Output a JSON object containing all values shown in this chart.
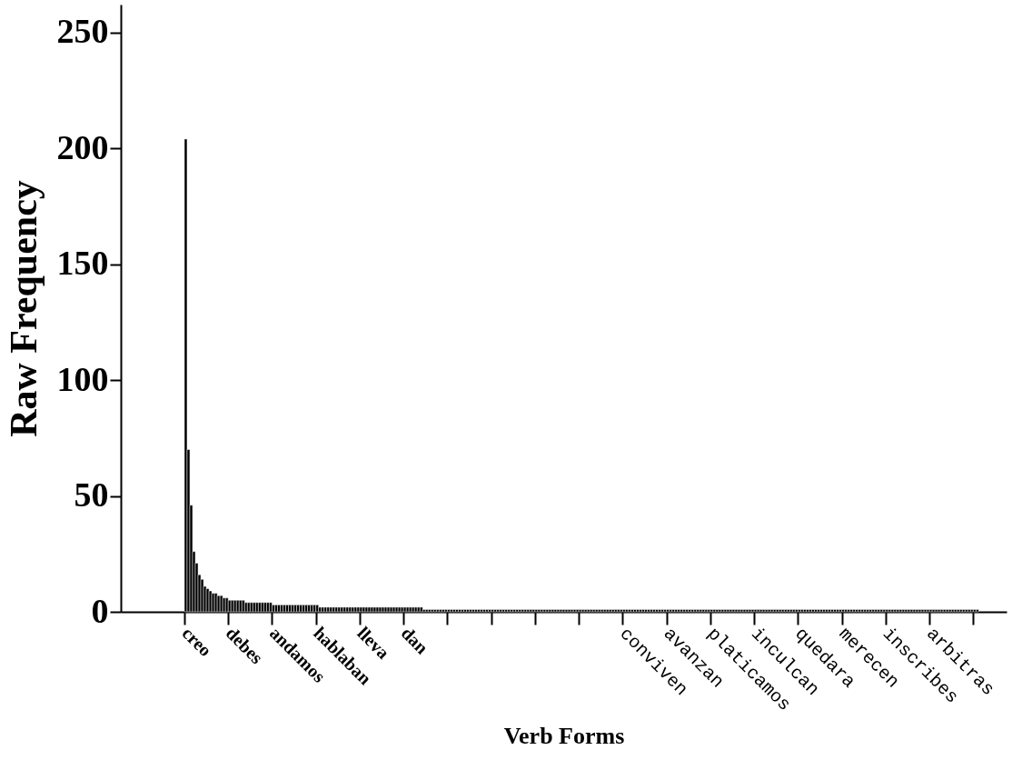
{
  "chart_data": {
    "type": "bar",
    "xlabel": "Verb Forms",
    "ylabel": "Raw Frequency",
    "color": "#000000",
    "ylim": [
      0,
      262
    ],
    "yticks": [
      0,
      50,
      100,
      150,
      200,
      250
    ],
    "grid": false,
    "categories": [
      "creo",
      null,
      null,
      null,
      null,
      null,
      null,
      null,
      null,
      null,
      null,
      null,
      null,
      null,
      null,
      null,
      "debes",
      null,
      null,
      null,
      null,
      null,
      null,
      null,
      null,
      null,
      null,
      null,
      null,
      null,
      null,
      null,
      "andamos",
      null,
      null,
      null,
      null,
      null,
      null,
      null,
      null,
      null,
      null,
      null,
      null,
      null,
      null,
      null,
      "hablaban",
      null,
      null,
      null,
      null,
      null,
      null,
      null,
      null,
      null,
      null,
      null,
      null,
      null,
      null,
      null,
      "lleva",
      null,
      null,
      null,
      null,
      null,
      null,
      null,
      null,
      null,
      null,
      null,
      null,
      null,
      null,
      null,
      "dan",
      null,
      null,
      null,
      null,
      null,
      null,
      null,
      null,
      null,
      null,
      null,
      null,
      null,
      null,
      null,
      null,
      null,
      null,
      null,
      null,
      null,
      null,
      null,
      null,
      null,
      null,
      null,
      null,
      null,
      null,
      null,
      null,
      null,
      null,
      null,
      null,
      null,
      null,
      null,
      null,
      null,
      null,
      null,
      null,
      null,
      null,
      null,
      null,
      null,
      null,
      null,
      null,
      null,
      null,
      null,
      null,
      null,
      null,
      null,
      null,
      null,
      null,
      null,
      null,
      null,
      null,
      null,
      null,
      null,
      null,
      null,
      null,
      null,
      null,
      null,
      null,
      null,
      null,
      null,
      "conviven",
      null,
      null,
      null,
      null,
      null,
      null,
      null,
      null,
      null,
      null,
      null,
      null,
      null,
      null,
      null,
      "avanzan",
      null,
      null,
      null,
      null,
      null,
      null,
      null,
      null,
      null,
      null,
      null,
      null,
      null,
      null,
      null,
      "platicamos",
      null,
      null,
      null,
      null,
      null,
      null,
      null,
      null,
      null,
      null,
      null,
      null,
      null,
      null,
      null,
      "inculcan",
      null,
      null,
      null,
      null,
      null,
      null,
      null,
      null,
      null,
      null,
      null,
      null,
      null,
      null,
      null,
      "quedara",
      null,
      null,
      null,
      null,
      null,
      null,
      null,
      null,
      null,
      null,
      null,
      null,
      null,
      null,
      null,
      "merecen",
      null,
      null,
      null,
      null,
      null,
      null,
      null,
      null,
      null,
      null,
      null,
      null,
      null,
      null,
      null,
      "inscribes",
      null,
      null,
      null,
      null,
      null,
      null,
      null,
      null,
      null,
      null,
      null,
      null,
      null,
      null,
      null,
      "arbitras",
      null,
      null,
      null,
      null,
      null,
      null,
      null,
      null,
      null,
      null,
      null,
      null,
      null,
      null,
      null,
      null,
      null
    ],
    "values": [
      204,
      70,
      46,
      26,
      21,
      16,
      14,
      11,
      10,
      9,
      8,
      8,
      7,
      7,
      6,
      6,
      5,
      5,
      5,
      5,
      5,
      5,
      4,
      4,
      4,
      4,
      4,
      4,
      4,
      4,
      4,
      4,
      3,
      3,
      3,
      3,
      3,
      3,
      3,
      3,
      3,
      3,
      3,
      3,
      3,
      3,
      3,
      3,
      3,
      2,
      2,
      2,
      2,
      2,
      2,
      2,
      2,
      2,
      2,
      2,
      2,
      2,
      2,
      2,
      2,
      2,
      2,
      2,
      2,
      2,
      2,
      2,
      2,
      2,
      2,
      2,
      2,
      2,
      2,
      2,
      2,
      2,
      2,
      2,
      2,
      2,
      2,
      1,
      1,
      1,
      1,
      1,
      1,
      1,
      1,
      1,
      1,
      1,
      1,
      1,
      1,
      1,
      1,
      1,
      1,
      1,
      1,
      1,
      1,
      1,
      1,
      1,
      1,
      1,
      1,
      1,
      1,
      1,
      1,
      1,
      1,
      1,
      1,
      1,
      1,
      1,
      1,
      1,
      1,
      1,
      1,
      1,
      1,
      1,
      1,
      1,
      1,
      1,
      1,
      1,
      1,
      1,
      1,
      1,
      1,
      1,
      1,
      1,
      1,
      1,
      1,
      1,
      1,
      1,
      1,
      1,
      1,
      1,
      1,
      1,
      1,
      1,
      1,
      1,
      1,
      1,
      1,
      1,
      1,
      1,
      1,
      1,
      1,
      1,
      1,
      1,
      1,
      1,
      1,
      1,
      1,
      1,
      1,
      1,
      1,
      1,
      1,
      1,
      1,
      1,
      1,
      1,
      1,
      1,
      1,
      1,
      1,
      1,
      1,
      1,
      1,
      1,
      1,
      1,
      1,
      1,
      1,
      1,
      1,
      1,
      1,
      1,
      1,
      1,
      1,
      1,
      1,
      1,
      1,
      1,
      1,
      1,
      1,
      1,
      1,
      1,
      1,
      1,
      1,
      1,
      1,
      1,
      1,
      1,
      1,
      1,
      1,
      1,
      1,
      1,
      1,
      1,
      1,
      1,
      1,
      1,
      1,
      1,
      1,
      1,
      1,
      1,
      1,
      1,
      1,
      1,
      1,
      1,
      1,
      1,
      1,
      1,
      1,
      1,
      1,
      1,
      1,
      1,
      1,
      1,
      1,
      1,
      1,
      1,
      1,
      1,
      1,
      1,
      1,
      1,
      1,
      1,
      1,
      1,
      1,
      1,
      1,
      1,
      1,
      1
    ]
  }
}
